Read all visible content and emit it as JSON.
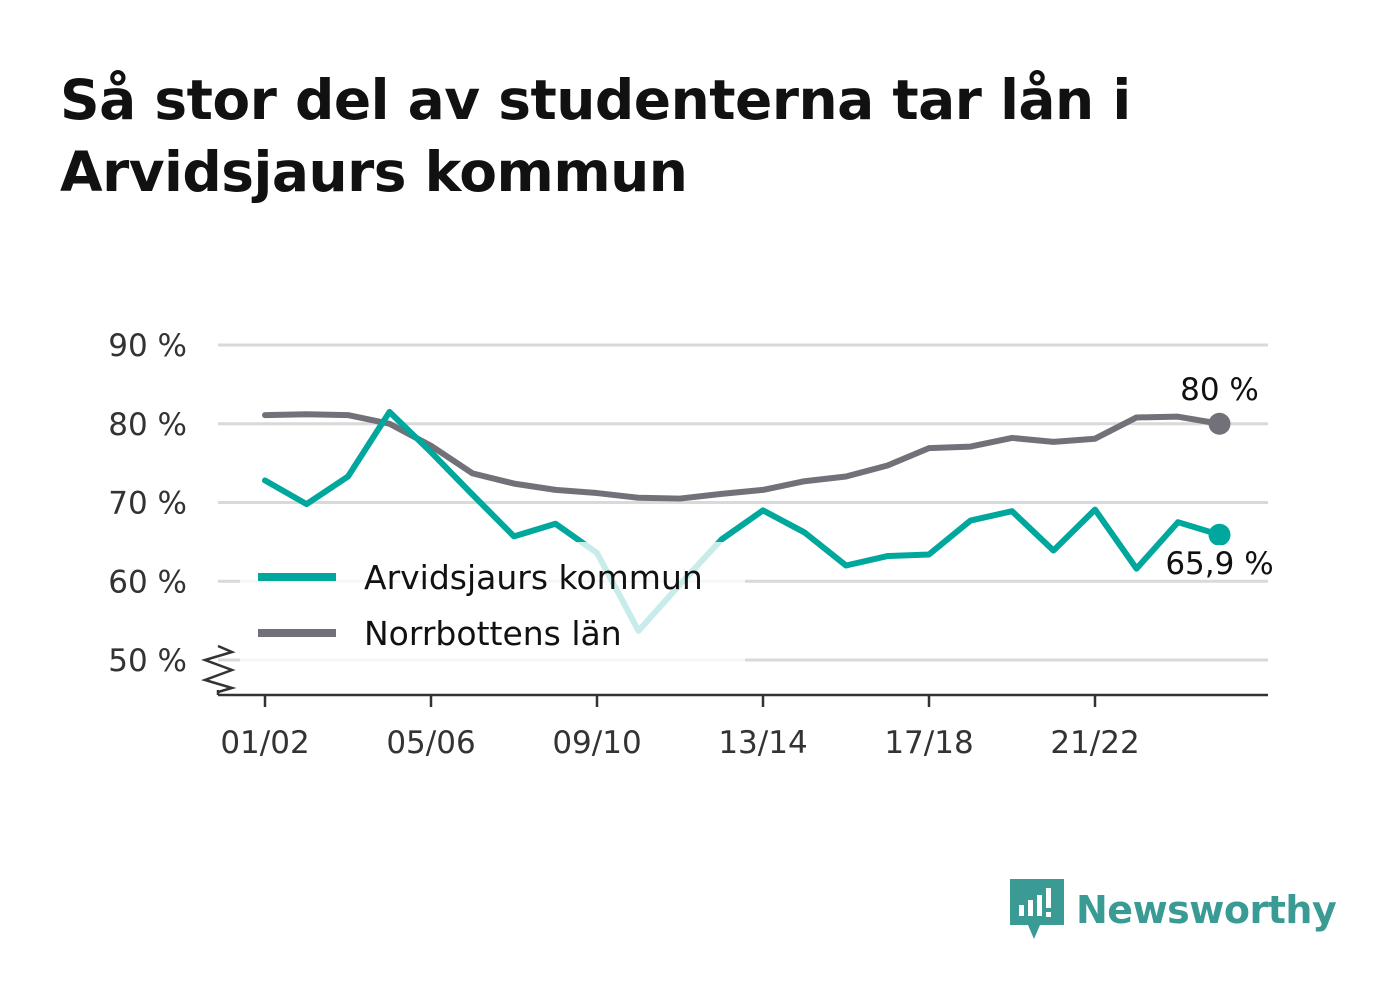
{
  "title": "Så stor del av studenterna tar lån i Arvidsjaurs kommun",
  "brand": {
    "name": "Newsworthy",
    "color": "#3a9a94",
    "icon": "newsworthy-logo-icon"
  },
  "colors": {
    "arvidsjaur": "#00a79d",
    "norrbotten": "#727179",
    "grid": "#d9d9d9",
    "axis": "#333333"
  },
  "chart_data": {
    "type": "line",
    "title": "Så stor del av studenterna tar lån i Arvidsjaurs kommun",
    "xlabel": "",
    "ylabel": "",
    "ylim": [
      50,
      90
    ],
    "y_ticks": [
      {
        "value": 50,
        "label": "50 %"
      },
      {
        "value": 60,
        "label": "60 %"
      },
      {
        "value": 70,
        "label": "70 %"
      },
      {
        "value": 80,
        "label": "80 %"
      },
      {
        "value": 90,
        "label": "90 %"
      }
    ],
    "y_axis_break": true,
    "x": [
      "01/02",
      "02/03",
      "03/04",
      "04/05",
      "05/06",
      "06/07",
      "07/08",
      "08/09",
      "09/10",
      "10/11",
      "11/12",
      "12/13",
      "13/14",
      "14/15",
      "15/16",
      "16/17",
      "17/18",
      "18/19",
      "19/20",
      "20/21",
      "21/22",
      "22/23",
      "23/24",
      "24/25"
    ],
    "x_tick_labels": [
      "01/02",
      "05/06",
      "09/10",
      "13/14",
      "17/18",
      "21/22"
    ],
    "grid": true,
    "legend_position": "bottom-left",
    "series": [
      {
        "name": "Arvidsjaurs kommun",
        "color": "#00a79d",
        "values": [
          72.8,
          69.8,
          73.3,
          81.5,
          76.4,
          71.0,
          65.7,
          67.3,
          63.6,
          53.7,
          59.6,
          65.3,
          69.0,
          66.2,
          62.0,
          63.2,
          63.4,
          67.7,
          68.9,
          63.9,
          69.1,
          61.6,
          67.5,
          65.9
        ],
        "end_label": "65,9 %"
      },
      {
        "name": "Norrbottens län",
        "color": "#727179",
        "values": [
          81.1,
          81.2,
          81.1,
          80.0,
          77.2,
          73.7,
          72.4,
          71.6,
          71.2,
          70.6,
          70.5,
          71.1,
          71.6,
          72.7,
          73.3,
          74.7,
          76.9,
          77.1,
          78.2,
          77.7,
          78.1,
          80.8,
          80.9,
          80.0
        ],
        "end_label": "80 %"
      }
    ]
  }
}
